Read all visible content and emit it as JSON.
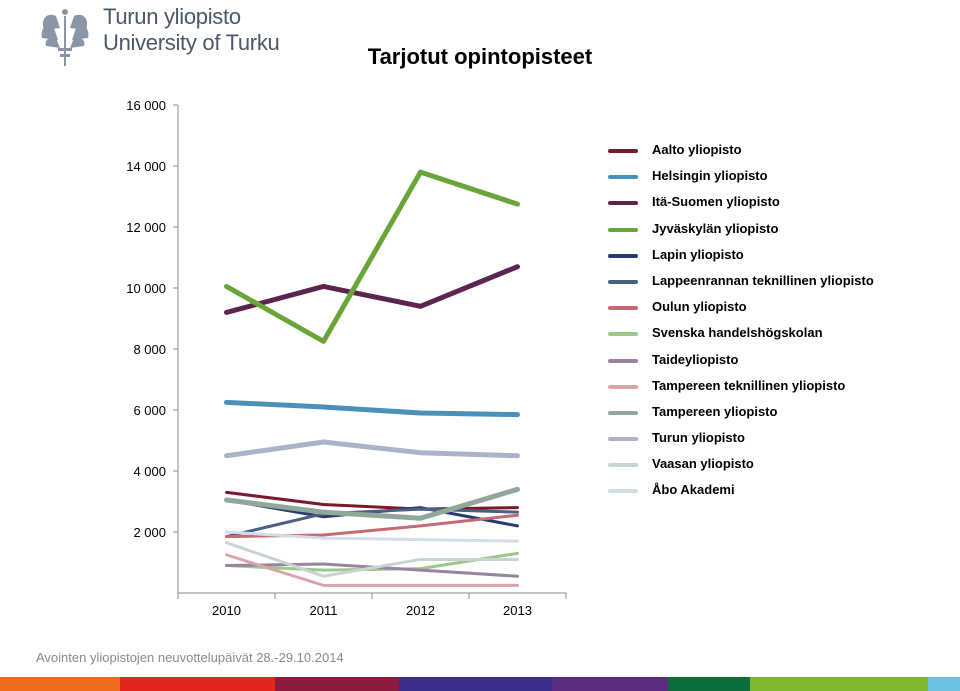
{
  "header": {
    "logo_line1": "Turun yliopisto",
    "logo_line2": "University of Turku",
    "title": "Tarjotut opintopisteet"
  },
  "footer": {
    "text": "Avointen yliopistojen neuvottelupäivät 28.-29.10.2014"
  },
  "bottom_bar_colors": [
    "#f06a1d",
    "#e2261c",
    "#8c1b3e",
    "#3a2f8c",
    "#5b2d82",
    "#0b6e3a",
    "#7fb72f",
    "#6cc1e0"
  ],
  "chart_data": {
    "type": "line",
    "title": "Tarjotut opintopisteet",
    "x": [
      "2010",
      "2011",
      "2012",
      "2013"
    ],
    "ylim": [
      0,
      16000
    ],
    "yticks": [
      2000,
      4000,
      6000,
      8000,
      10000,
      12000,
      14000,
      16000
    ],
    "ytick_labels": [
      "2 000",
      "4 000",
      "6 000",
      "8 000",
      "10 000",
      "12 000",
      "14 000",
      "16 000"
    ],
    "grid": false,
    "legend_position": "right",
    "series": [
      {
        "name": "Aalto yliopisto",
        "color": "#7a1a2a",
        "width": 3,
        "values": [
          3300,
          2900,
          2750,
          2800
        ]
      },
      {
        "name": "Helsingin yliopisto",
        "color": "#4a90b8",
        "width": 5,
        "values": [
          6250,
          6100,
          5900,
          5850
        ]
      },
      {
        "name": "Itä-Suomen yliopisto",
        "color": "#5c2550",
        "width": 5,
        "values": [
          9200,
          10050,
          9400,
          10700
        ]
      },
      {
        "name": "Jyväskylän yliopisto",
        "color": "#6aa53a",
        "width": 5,
        "values": [
          10050,
          8250,
          13800,
          12750
        ]
      },
      {
        "name": "Lapin yliopisto",
        "color": "#2a3c6e",
        "width": 3,
        "values": [
          3050,
          2500,
          2800,
          2200
        ]
      },
      {
        "name": "Lappeenrannan teknillinen yliopisto",
        "color": "#4a5f82",
        "width": 3,
        "values": [
          1850,
          2600,
          2750,
          2650
        ]
      },
      {
        "name": "Oulun yliopisto",
        "color": "#c46a70",
        "width": 3,
        "values": [
          1850,
          1900,
          2200,
          2550
        ]
      },
      {
        "name": "Svenska handelshögskolan",
        "color": "#9cc98a",
        "width": 3,
        "values": [
          900,
          750,
          800,
          1300
        ]
      },
      {
        "name": "Taideyliopisto",
        "color": "#9a85a0",
        "width": 3,
        "values": [
          900,
          950,
          750,
          550
        ]
      },
      {
        "name": "Tampereen teknillinen yliopisto",
        "color": "#d9a6a8",
        "width": 3,
        "values": [
          1250,
          250,
          250,
          250
        ]
      },
      {
        "name": "Tampereen yliopisto",
        "color": "#8fa89a",
        "width": 5,
        "values": [
          3050,
          2650,
          2450,
          3400
        ]
      },
      {
        "name": "Turun yliopisto",
        "color": "#aab3c8",
        "width": 5,
        "values": [
          4500,
          4950,
          4600,
          4500
        ]
      },
      {
        "name": "Vaasan yliopisto",
        "color": "#c8d4d2",
        "width": 3,
        "values": [
          1650,
          550,
          1100,
          1100
        ]
      },
      {
        "name": "Åbo Akademi",
        "color": "#d4dce6",
        "width": 3,
        "values": [
          2000,
          1800,
          1750,
          1700
        ]
      }
    ]
  }
}
